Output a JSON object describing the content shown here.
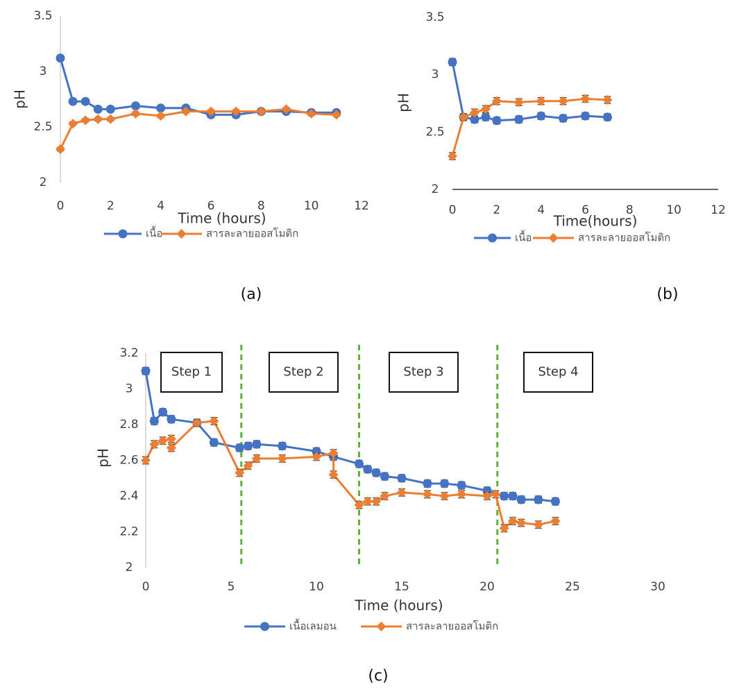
{
  "chart_data": [
    {
      "type": "line",
      "x_label": "Time (hours)",
      "y_label": "pH",
      "caption": "(a)",
      "axis_line": "left",
      "xlim": [
        0,
        12
      ],
      "xticks": [
        0,
        2,
        4,
        6,
        8,
        10,
        12
      ],
      "ylim": [
        2,
        3.5
      ],
      "yticks": [
        2,
        2.5,
        3,
        3.5
      ],
      "series": [
        {
          "name": "เนื้อ",
          "color": "#4472c4",
          "marker": "circle",
          "error": 0.015,
          "x": [
            0,
            0.5,
            1,
            1.5,
            2,
            3,
            4,
            5,
            6,
            7,
            8,
            9,
            10,
            11
          ],
          "values": [
            3.12,
            2.73,
            2.73,
            2.66,
            2.66,
            2.69,
            2.67,
            2.67,
            2.61,
            2.61,
            2.64,
            2.64,
            2.63,
            2.63
          ]
        },
        {
          "name": "สารละลายออสโมติก",
          "color": "#ed7d31",
          "marker": "diamond",
          "error": 0.015,
          "x": [
            0,
            0.5,
            1,
            1.5,
            2,
            3,
            4,
            5,
            6,
            7,
            8,
            9,
            10,
            11
          ],
          "values": [
            2.3,
            2.53,
            2.56,
            2.57,
            2.57,
            2.62,
            2.6,
            2.64,
            2.64,
            2.64,
            2.64,
            2.66,
            2.62,
            2.61
          ]
        }
      ]
    },
    {
      "type": "line",
      "x_label": "Time(hours)",
      "y_label": "pH",
      "caption": "(b)",
      "axis_line": "bottom",
      "xlim": [
        0,
        12
      ],
      "xticks": [
        0,
        2,
        4,
        6,
        8,
        10,
        12
      ],
      "ylim": [
        2,
        3.5
      ],
      "yticks": [
        2,
        2.5,
        3,
        3.5
      ],
      "series": [
        {
          "name": "เนื้อ",
          "color": "#4472c4",
          "marker": "circle",
          "error": 0.03,
          "x": [
            0,
            0.5,
            1,
            1.5,
            2,
            3,
            4,
            5,
            6,
            7
          ],
          "values": [
            3.11,
            2.63,
            2.61,
            2.63,
            2.6,
            2.61,
            2.64,
            2.62,
            2.64,
            2.63
          ]
        },
        {
          "name": "สารละลายออสโมติก",
          "color": "#ed7d31",
          "marker": "diamond",
          "error": 0.03,
          "x": [
            0,
            0.5,
            1,
            1.5,
            2,
            3,
            4,
            5,
            6,
            7
          ],
          "values": [
            2.29,
            2.63,
            2.67,
            2.7,
            2.77,
            2.76,
            2.77,
            2.77,
            2.79,
            2.78
          ]
        }
      ]
    },
    {
      "type": "line",
      "x_label": "Time (hours)",
      "y_label": "pH",
      "caption": "(c)",
      "axis_line": "left",
      "xlim": [
        0,
        30
      ],
      "xticks": [
        0,
        5,
        10,
        15,
        20,
        25,
        30
      ],
      "ylim": [
        2,
        3.2
      ],
      "yticks": [
        2,
        2.2,
        2.4,
        2.6,
        2.8,
        3,
        3.2
      ],
      "annotations": [
        "Step 1",
        "Step 2",
        "Step 3",
        "Step 4"
      ],
      "dividers": [
        5.6,
        12.5,
        20.6
      ],
      "series": [
        {
          "name": "เนื้อเลมอน",
          "color": "#4472c4",
          "marker": "circle",
          "error": 0.02,
          "x": [
            0,
            0.5,
            1,
            1.5,
            3,
            4,
            5.5,
            6,
            6.5,
            8,
            10,
            11,
            12.5,
            13,
            13.5,
            14,
            15,
            16.5,
            17.5,
            18.5,
            20,
            21,
            21.5,
            22,
            23,
            24
          ],
          "values": [
            3.1,
            2.82,
            2.87,
            2.83,
            2.81,
            2.7,
            2.67,
            2.68,
            2.69,
            2.68,
            2.65,
            2.62,
            2.58,
            2.55,
            2.53,
            2.51,
            2.5,
            2.47,
            2.47,
            2.46,
            2.43,
            2.4,
            2.4,
            2.38,
            2.38,
            2.37
          ]
        },
        {
          "name": "สารละลายออสโมติก",
          "color": "#ed7d31",
          "marker": "diamond",
          "error": 0.02,
          "x": [
            0,
            0.5,
            1,
            1.5,
            1.5,
            3,
            4,
            5.5,
            6,
            6.5,
            8,
            10,
            11,
            11,
            12.5,
            13,
            13.5,
            14,
            15,
            16.5,
            17.5,
            18.5,
            20,
            20.5,
            21,
            21.5,
            22,
            23,
            24
          ],
          "values": [
            2.6,
            2.69,
            2.71,
            2.72,
            2.67,
            2.81,
            2.82,
            2.53,
            2.57,
            2.61,
            2.61,
            2.62,
            2.64,
            2.52,
            2.35,
            2.37,
            2.37,
            2.4,
            2.42,
            2.41,
            2.4,
            2.41,
            2.4,
            2.41,
            2.22,
            2.26,
            2.25,
            2.24,
            2.26
          ]
        }
      ]
    }
  ]
}
